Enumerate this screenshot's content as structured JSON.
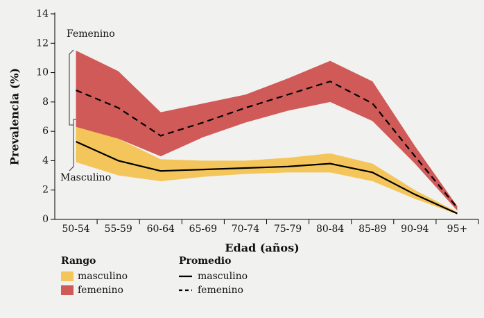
{
  "chart_data": {
    "type": "line",
    "x_label": "Edad (años)",
    "y_label": "Prevalencia (%)",
    "categories": [
      "50-54",
      "55-59",
      "60-64",
      "65-69",
      "70-74",
      "75-79",
      "80-84",
      "85-89",
      "90-94",
      "95+"
    ],
    "ylim": [
      0,
      14
    ],
    "yticks": [
      0,
      2,
      4,
      6,
      8,
      10,
      12,
      14
    ],
    "annotations": [
      "Femenino",
      "Masculino"
    ],
    "legend_titles": [
      "Rango",
      "Promedio"
    ],
    "ranges": [
      {
        "name": "masculino",
        "color": "#f4c55a",
        "low": [
          3.9,
          3.0,
          2.6,
          2.9,
          3.1,
          3.2,
          3.2,
          2.6,
          1.4,
          0.35
        ],
        "high": [
          6.9,
          5.5,
          4.1,
          4.0,
          4.0,
          4.2,
          4.5,
          3.8,
          2.0,
          0.5
        ]
      },
      {
        "name": "femenino",
        "color": "#d05a58",
        "low": [
          6.3,
          5.5,
          4.3,
          5.6,
          6.6,
          7.4,
          8.0,
          6.7,
          3.8,
          0.6
        ],
        "high": [
          11.5,
          10.1,
          7.3,
          7.9,
          8.5,
          9.6,
          10.8,
          9.4,
          5.0,
          0.9
        ]
      }
    ],
    "series": [
      {
        "name": "masculino",
        "color": "#000000",
        "dash": false,
        "values": [
          5.3,
          4.0,
          3.3,
          3.4,
          3.5,
          3.6,
          3.8,
          3.2,
          1.7,
          0.4
        ]
      },
      {
        "name": "femenino",
        "color": "#000000",
        "dash": true,
        "values": [
          8.8,
          7.6,
          5.7,
          6.6,
          7.6,
          8.5,
          9.4,
          7.9,
          4.3,
          0.8
        ]
      }
    ]
  }
}
